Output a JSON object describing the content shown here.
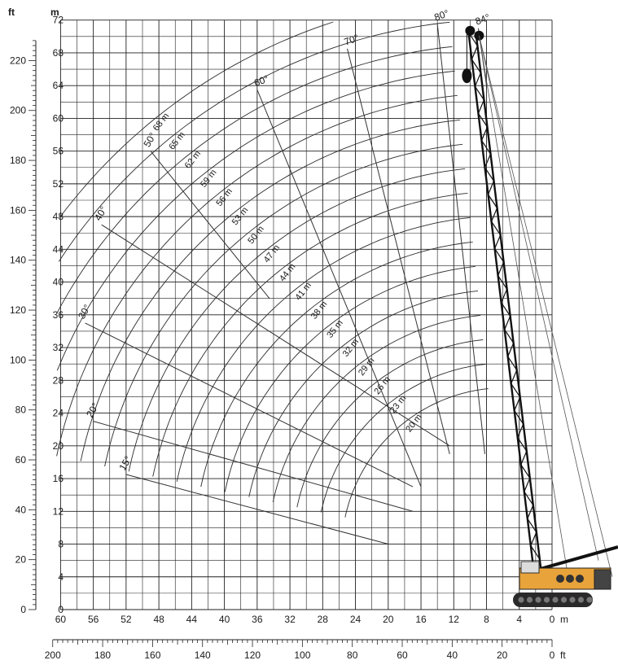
{
  "units": {
    "ft_label": "ft",
    "m_label": "m"
  },
  "y_axis_m": {
    "ticks": [
      0,
      4,
      8,
      12,
      16,
      20,
      24,
      28,
      32,
      36,
      40,
      44,
      48,
      52,
      56,
      60,
      64,
      68,
      72
    ]
  },
  "y_axis_ft": {
    "ticks": [
      0,
      20,
      40,
      60,
      80,
      100,
      120,
      140,
      160,
      180,
      200,
      220
    ]
  },
  "x_axis_m": {
    "ticks": [
      60,
      56,
      52,
      48,
      44,
      40,
      36,
      32,
      28,
      24,
      20,
      16,
      12,
      8,
      4,
      0
    ],
    "unit": "m"
  },
  "x_axis_ft": {
    "ticks": [
      200,
      180,
      160,
      140,
      120,
      100,
      80,
      60,
      40,
      20,
      0
    ],
    "unit": "ft"
  },
  "jib_lengths": [
    {
      "label": "68 m",
      "length": 68
    },
    {
      "label": "65 m",
      "length": 65
    },
    {
      "label": "62 m",
      "length": 62
    },
    {
      "label": "59 m",
      "length": 59
    },
    {
      "label": "56 m",
      "length": 56
    },
    {
      "label": "53 m",
      "length": 53
    },
    {
      "label": "50 m",
      "length": 50
    },
    {
      "label": "47 m",
      "length": 47
    },
    {
      "label": "44 m",
      "length": 44
    },
    {
      "label": "41 m",
      "length": 41
    },
    {
      "label": "38 m",
      "length": 38
    },
    {
      "label": "35 m",
      "length": 35
    },
    {
      "label": "32 m",
      "length": 32
    },
    {
      "label": "29 m",
      "length": 29
    },
    {
      "label": "26 m",
      "length": 26
    },
    {
      "label": "23 m",
      "length": 23
    },
    {
      "label": "20 m",
      "length": 20
    }
  ],
  "angles": [
    {
      "label": "84°",
      "deg": 84
    },
    {
      "label": "80°",
      "deg": 80
    },
    {
      "label": "70°",
      "deg": 70
    },
    {
      "label": "60°",
      "deg": 60
    },
    {
      "label": "50°",
      "deg": 50
    },
    {
      "label": "40°",
      "deg": 40
    },
    {
      "label": "30°",
      "deg": 30
    },
    {
      "label": "20°",
      "deg": 20
    },
    {
      "label": "15°",
      "deg": 15
    }
  ],
  "crane": {
    "body_color": "#e8a33a",
    "boom_color": "#111111",
    "track_color": "#2a2a2a"
  }
}
